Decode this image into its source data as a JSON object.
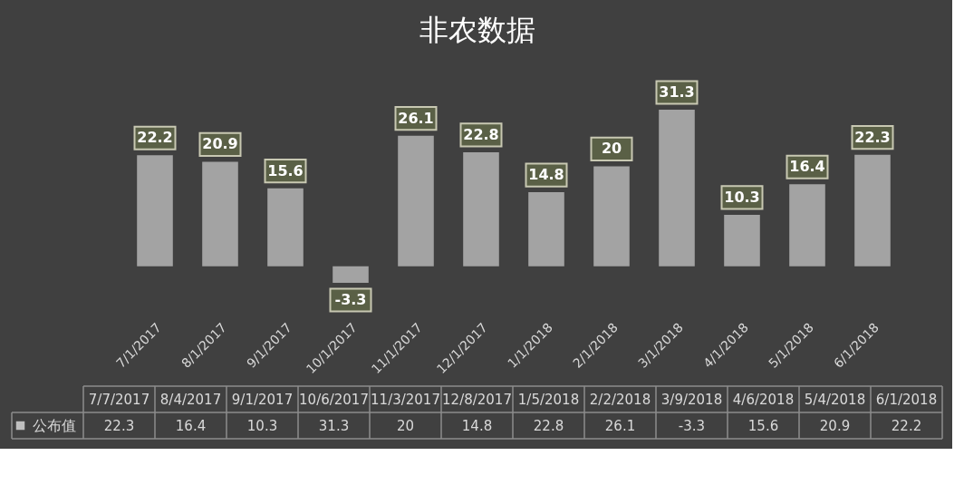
{
  "chart_data": [
    {
      "type": "bar",
      "title": "非农数据",
      "categories": [
        "7/1/2017",
        "8/1/2017",
        "9/1/2017",
        "10/1/2017",
        "11/1/2017",
        "12/1/2017",
        "1/1/2018",
        "2/1/2018",
        "3/1/2018",
        "4/1/2018",
        "5/1/2018",
        "6/1/2018"
      ],
      "values": [
        22.2,
        20.9,
        15.6,
        -3.3,
        26.1,
        22.8,
        14.8,
        20,
        31.3,
        10.3,
        16.4,
        22.3
      ],
      "color": "#a3a3a3",
      "data_labels": true
    },
    {
      "type": "other",
      "categories": [
        "7/7/2017",
        "8/4/2017",
        "9/1/2017",
        "10/6/2017",
        "11/3/2017",
        "12/8/2017",
        "1/5/2018",
        "2/2/2018",
        "3/9/2018",
        "4/6/2018",
        "5/4/2018",
        "6/1/2018"
      ],
      "series": [
        {
          "name": "公布值",
          "color": "#bfbfbf",
          "values": [
            22.3,
            16.4,
            10.3,
            31.3,
            20,
            14.8,
            22.8,
            26.1,
            -3.3,
            15.6,
            20.9,
            22.2
          ]
        }
      ],
      "data_labels": true
    }
  ]
}
